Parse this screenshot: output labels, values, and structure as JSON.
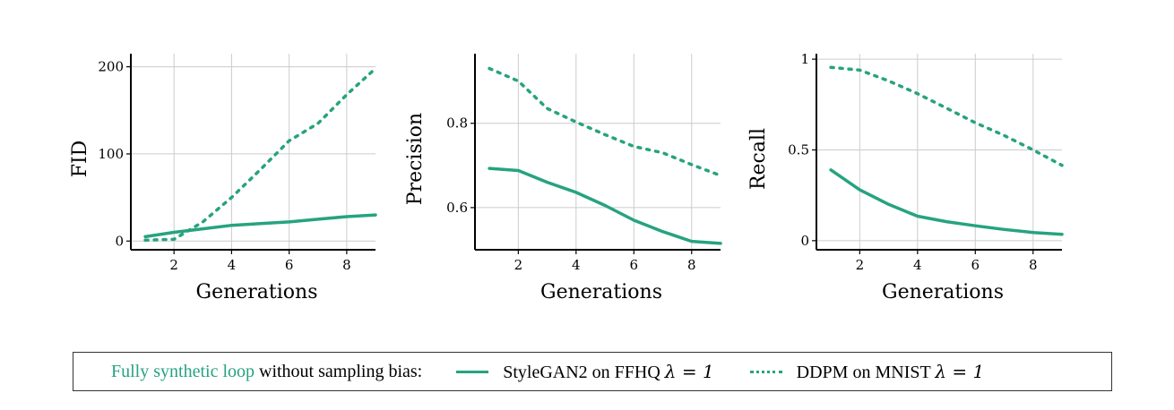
{
  "colors": {
    "series": "#26a37f",
    "grid": "#cccccc",
    "axis": "#000000"
  },
  "legend": {
    "title_accent": "Fully synthetic loop",
    "title_rest": "without sampling bias:",
    "items": [
      {
        "style": "solid",
        "label": "StyleGAN2 on FFHQ",
        "lambda": "λ = 1"
      },
      {
        "style": "dotted",
        "label": "DDPM on MNIST",
        "lambda": "λ = 1"
      }
    ]
  },
  "chart_data": [
    {
      "type": "line",
      "title": "",
      "xlabel": "Generations",
      "ylabel": "FID",
      "xlim": [
        0.5,
        9.0
      ],
      "ylim": [
        -10,
        215
      ],
      "xticks": [
        2,
        4,
        6,
        8
      ],
      "yticks": [
        0,
        100,
        200
      ],
      "grid": true,
      "series": [
        {
          "style": "solid",
          "x": [
            1,
            2,
            3,
            4,
            5,
            6,
            7,
            8,
            9
          ],
          "values": [
            5,
            10,
            14,
            18,
            20,
            22,
            25,
            28,
            30
          ]
        },
        {
          "style": "dotted",
          "x": [
            1,
            2,
            3,
            4,
            5,
            6,
            7,
            8,
            9
          ],
          "values": [
            1,
            2,
            22,
            50,
            82,
            115,
            135,
            168,
            198
          ]
        }
      ]
    },
    {
      "type": "line",
      "title": "",
      "xlabel": "Generations",
      "ylabel": "Precision",
      "xlim": [
        0.5,
        9.0
      ],
      "ylim": [
        0.5,
        0.965
      ],
      "xticks": [
        2,
        4,
        6,
        8
      ],
      "yticks": [
        0.6,
        0.8
      ],
      "grid": true,
      "series": [
        {
          "style": "solid",
          "x": [
            1,
            2,
            3,
            4,
            5,
            6,
            7,
            8,
            9
          ],
          "values": [
            0.693,
            0.688,
            0.66,
            0.636,
            0.605,
            0.57,
            0.543,
            0.52,
            0.515
          ]
        },
        {
          "style": "dotted",
          "x": [
            1,
            2,
            3,
            4,
            5,
            6,
            7,
            8,
            9
          ],
          "values": [
            0.93,
            0.9,
            0.835,
            0.803,
            0.773,
            0.745,
            0.73,
            0.702,
            0.676
          ]
        }
      ]
    },
    {
      "type": "line",
      "title": "",
      "xlabel": "Generations",
      "ylabel": "Recall",
      "xlim": [
        0.5,
        9.0
      ],
      "ylim": [
        -0.05,
        1.03
      ],
      "xticks": [
        2,
        4,
        6,
        8
      ],
      "yticks": [
        0,
        0.5,
        1
      ],
      "grid": true,
      "series": [
        {
          "style": "solid",
          "x": [
            1,
            2,
            3,
            4,
            5,
            6,
            7,
            8,
            9
          ],
          "values": [
            0.39,
            0.28,
            0.2,
            0.135,
            0.105,
            0.082,
            0.062,
            0.045,
            0.035
          ]
        },
        {
          "style": "dotted",
          "x": [
            1,
            2,
            3,
            4,
            5,
            6,
            7,
            8,
            9
          ],
          "values": [
            0.955,
            0.94,
            0.88,
            0.81,
            0.73,
            0.65,
            0.58,
            0.5,
            0.415
          ]
        }
      ]
    }
  ]
}
